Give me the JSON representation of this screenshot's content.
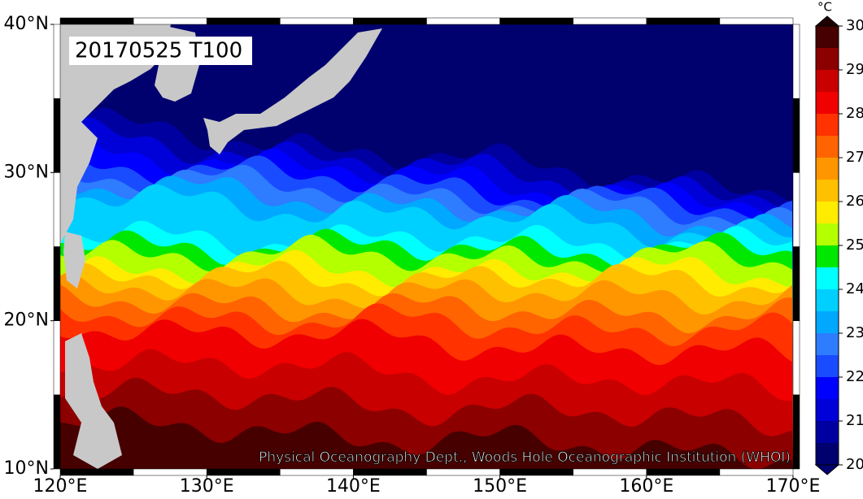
{
  "title": "20170525 T100",
  "credit": "Physical Oceanography Dept., Woods Hole Oceanographic Institution (WHOI)",
  "lonlim": [
    120,
    170
  ],
  "latlim": [
    10,
    40
  ],
  "lonticks": [
    {
      "value": 120,
      "label": "120°E"
    },
    {
      "value": 130,
      "label": "130°E"
    },
    {
      "value": 140,
      "label": "140°E"
    },
    {
      "value": 150,
      "label": "150°E"
    },
    {
      "value": 160,
      "label": "160°E"
    },
    {
      "value": 170,
      "label": "170°E"
    }
  ],
  "latticks": [
    {
      "value": 10,
      "label": "10°N"
    },
    {
      "value": 20,
      "label": "20°N"
    },
    {
      "value": 30,
      "label": "30°N"
    },
    {
      "value": 40,
      "label": "40°N"
    }
  ],
  "colorbar": {
    "unit": "°C",
    "lim": [
      20,
      30
    ],
    "ticks": [
      20,
      21,
      22,
      23,
      24,
      25,
      26,
      27,
      28,
      29,
      30
    ],
    "colors": [
      "#00006e",
      "#0000a0",
      "#0000d8",
      "#0000ff",
      "#1a4cff",
      "#2e7cff",
      "#00a8ff",
      "#00d0ff",
      "#00ffff",
      "#00e800",
      "#b4ff00",
      "#ffec00",
      "#ffc000",
      "#ff9600",
      "#ff6400",
      "#ff3200",
      "#f00000",
      "#c80000",
      "#8c0000",
      "#460000"
    ],
    "over": "#1e0000"
  },
  "land_color": "#c8c8c8"
}
